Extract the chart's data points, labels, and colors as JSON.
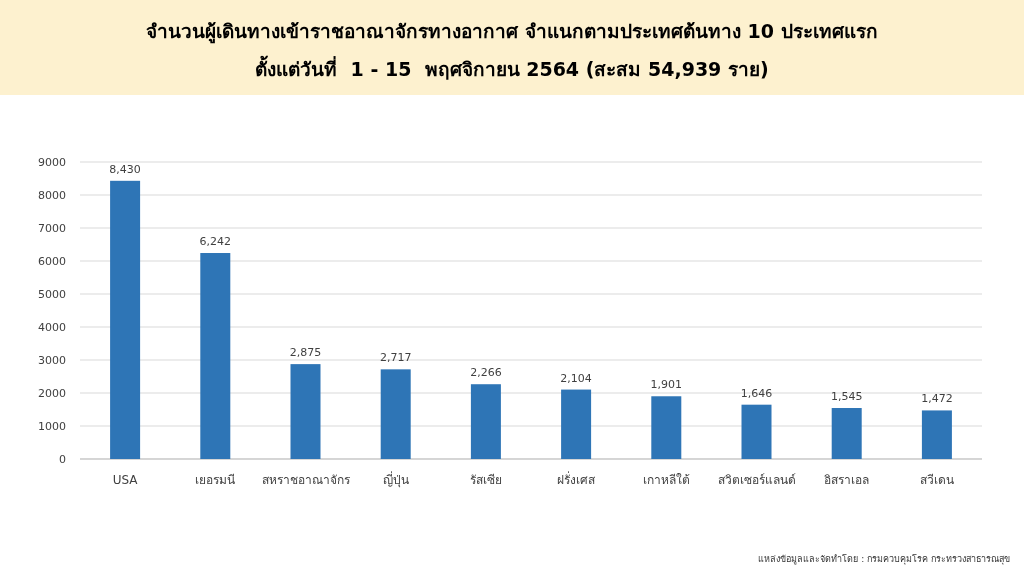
{
  "chart_data": {
    "type": "bar",
    "title": "จำนวนผู้เดินทางเข้าราชอาณาจักรทางอากาศ จำแนกตามประเทศต้นทาง 10 ประเทศแรก",
    "subtitle": "ตั้งแต่วันที่  1 - 15  พฤศจิกายน 2564 (สะสม 54,939 ราย)",
    "categories": [
      "USA",
      "เยอรมนี",
      "สหราชอาณาจักร",
      "ญี่ปุ่น",
      "รัสเซีย",
      "ฝรั่งเศส",
      "เกาหลีใต้",
      "สวิตเซอร์แลนด์",
      "อิสราเอล",
      "สวีเดน"
    ],
    "values": [
      8430,
      6242,
      2875,
      2717,
      2266,
      2104,
      1901,
      1646,
      1545,
      1472
    ],
    "value_labels": [
      "8,430",
      "6,242",
      "2,875",
      "2,717",
      "2,266",
      "2,104",
      "1,901",
      "1,646",
      "1,545",
      "1,472"
    ],
    "color": "#2e75b6",
    "ylim": [
      0,
      9000
    ],
    "yticks": [
      0,
      1000,
      2000,
      3000,
      4000,
      5000,
      6000,
      7000,
      8000,
      9000
    ],
    "grid": "y",
    "annotations": [
      "แหล่งข้อมูลและจัดทำโดย : กรมควบคุมโรค กระทรวงสาธารณสุข"
    ]
  }
}
